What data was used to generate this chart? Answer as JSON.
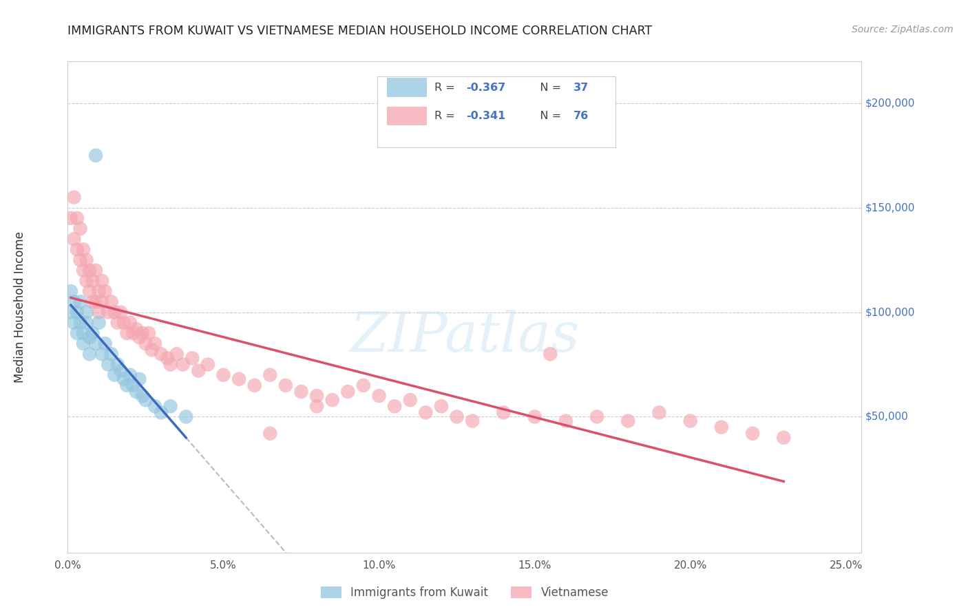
{
  "title": "IMMIGRANTS FROM KUWAIT VS VIETNAMESE MEDIAN HOUSEHOLD INCOME CORRELATION CHART",
  "source": "Source: ZipAtlas.com",
  "ylabel": "Median Household Income",
  "x_ticks": [
    0.0,
    0.05,
    0.1,
    0.15,
    0.2,
    0.25
  ],
  "x_tick_labels": [
    "0.0%",
    "5.0%",
    "10.0%",
    "15.0%",
    "20.0%",
    "25.0%"
  ],
  "xlim": [
    0.0,
    0.255
  ],
  "ylim": [
    -15000,
    220000
  ],
  "y_label_vals": [
    50000,
    100000,
    150000,
    200000
  ],
  "y_label_texts": [
    "$50,000",
    "$100,000",
    "$150,000",
    "$200,000"
  ],
  "legend_r1": "R = -0.367",
  "legend_n1": "N = 37",
  "legend_r2": "R = -0.341",
  "legend_n2": "N = 76",
  "color_blue": "#92c5de",
  "color_pink": "#f4a5b0",
  "color_blue_line": "#3a6bbf",
  "color_pink_line": "#d9516a",
  "color_blue_text": "#4472c4",
  "watermark_text": "ZIPatlas",
  "kuwait_x": [
    0.001,
    0.001,
    0.002,
    0.002,
    0.003,
    0.003,
    0.004,
    0.004,
    0.005,
    0.005,
    0.006,
    0.006,
    0.007,
    0.007,
    0.008,
    0.009,
    0.01,
    0.011,
    0.012,
    0.013,
    0.014,
    0.015,
    0.016,
    0.017,
    0.018,
    0.019,
    0.02,
    0.021,
    0.022,
    0.023,
    0.024,
    0.025,
    0.028,
    0.03,
    0.033,
    0.038,
    0.009
  ],
  "kuwait_y": [
    100000,
    110000,
    95000,
    105000,
    90000,
    100000,
    95000,
    105000,
    90000,
    85000,
    95000,
    100000,
    88000,
    80000,
    90000,
    85000,
    95000,
    80000,
    85000,
    75000,
    80000,
    70000,
    75000,
    72000,
    68000,
    65000,
    70000,
    65000,
    62000,
    68000,
    60000,
    58000,
    55000,
    52000,
    55000,
    50000,
    175000
  ],
  "viet_x": [
    0.001,
    0.002,
    0.002,
    0.003,
    0.003,
    0.004,
    0.004,
    0.005,
    0.005,
    0.006,
    0.006,
    0.007,
    0.007,
    0.008,
    0.008,
    0.009,
    0.009,
    0.01,
    0.01,
    0.011,
    0.011,
    0.012,
    0.013,
    0.014,
    0.015,
    0.016,
    0.017,
    0.018,
    0.019,
    0.02,
    0.021,
    0.022,
    0.023,
    0.024,
    0.025,
    0.026,
    0.027,
    0.028,
    0.03,
    0.032,
    0.033,
    0.035,
    0.037,
    0.04,
    0.042,
    0.045,
    0.05,
    0.055,
    0.06,
    0.065,
    0.07,
    0.075,
    0.08,
    0.085,
    0.09,
    0.095,
    0.1,
    0.105,
    0.11,
    0.115,
    0.12,
    0.125,
    0.13,
    0.14,
    0.15,
    0.16,
    0.17,
    0.18,
    0.19,
    0.2,
    0.21,
    0.22,
    0.23,
    0.155,
    0.08,
    0.065
  ],
  "viet_y": [
    145000,
    155000,
    135000,
    145000,
    130000,
    140000,
    125000,
    130000,
    120000,
    125000,
    115000,
    120000,
    110000,
    115000,
    105000,
    120000,
    105000,
    110000,
    100000,
    115000,
    105000,
    110000,
    100000,
    105000,
    100000,
    95000,
    100000,
    95000,
    90000,
    95000,
    90000,
    92000,
    88000,
    90000,
    85000,
    90000,
    82000,
    85000,
    80000,
    78000,
    75000,
    80000,
    75000,
    78000,
    72000,
    75000,
    70000,
    68000,
    65000,
    70000,
    65000,
    62000,
    60000,
    58000,
    62000,
    65000,
    60000,
    55000,
    58000,
    52000,
    55000,
    50000,
    48000,
    52000,
    50000,
    48000,
    50000,
    48000,
    52000,
    48000,
    45000,
    42000,
    40000,
    80000,
    55000,
    42000
  ]
}
